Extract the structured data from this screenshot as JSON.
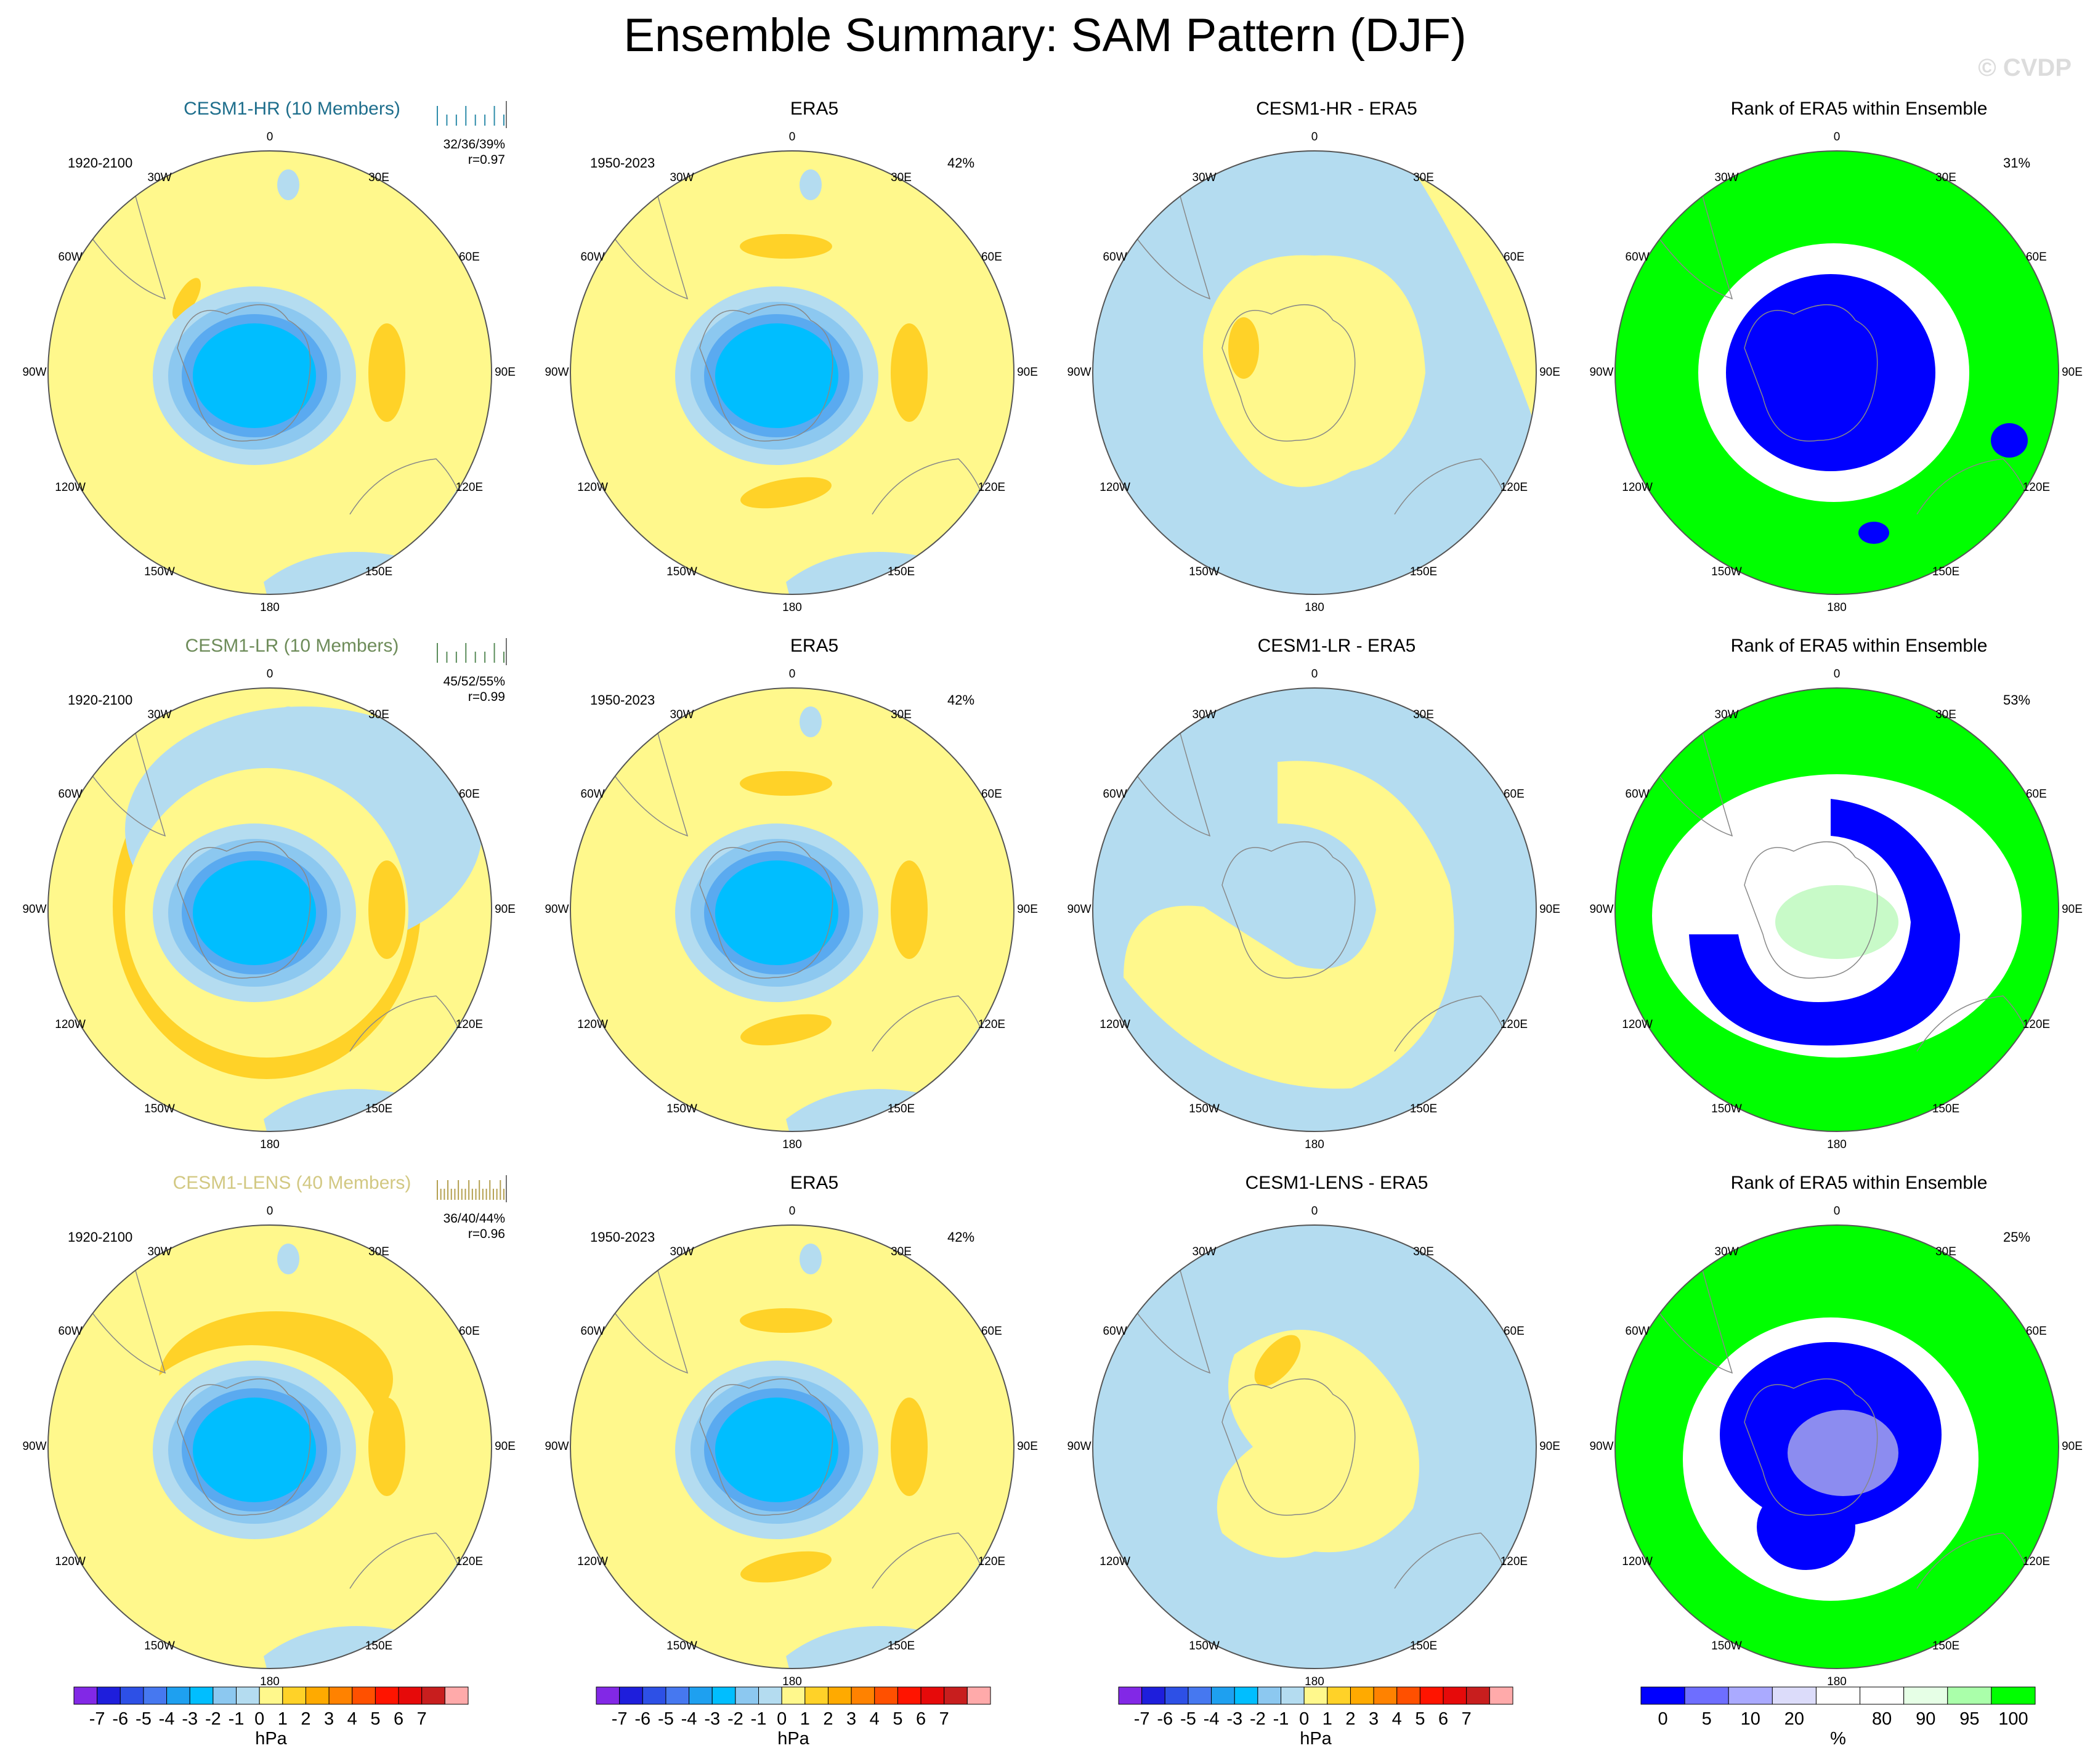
{
  "title": "Ensemble Summary: SAM Pattern (DJF)",
  "watermark": "© CVDP",
  "colors": {
    "yellow": "#FFF88C",
    "gold": "#FFD228",
    "lightblue": "#B4DCF0",
    "blue1": "#8CC8F0",
    "blue2": "#5AAAF0",
    "blue3": "#00BEFF",
    "rank_green": "#00FF00",
    "rank_blue": "#0000FF"
  },
  "lon_labels": [
    "0",
    "30E",
    "60E",
    "90E",
    "120E",
    "150E",
    "180",
    "150W",
    "120W",
    "90W",
    "60W",
    "30W"
  ],
  "rows": [
    {
      "model": {
        "title": "CESM1-HR (10 Members)",
        "title_color": "#1E6E8C",
        "years": "1920-2100",
        "stats1": "32/36/39%",
        "stats2": "r=0.97",
        "tick_color": "#2E8CAA"
      },
      "obs": {
        "title": "ERA5",
        "years": "1950-2023",
        "pct": "42%"
      },
      "diff": {
        "title": "CESM1-HR - ERA5"
      },
      "rank": {
        "title": "Rank of ERA5 within Ensemble",
        "pct": "31%"
      }
    },
    {
      "model": {
        "title": "CESM1-LR (10 Members)",
        "title_color": "#6E8C5A",
        "years": "1920-2100",
        "stats1": "45/52/55%",
        "stats2": "r=0.99",
        "tick_color": "#5A8C5A"
      },
      "obs": {
        "title": "ERA5",
        "years": "1950-2023",
        "pct": "42%"
      },
      "diff": {
        "title": "CESM1-LR - ERA5"
      },
      "rank": {
        "title": "Rank of ERA5 within Ensemble",
        "pct": "53%"
      }
    },
    {
      "model": {
        "title": "CESM1-LENS (40 Members)",
        "title_color": "#D2C882",
        "years": "1920-2100",
        "stats1": "36/40/44%",
        "stats2": "r=0.96",
        "tick_color": "#B4A050"
      },
      "obs": {
        "title": "ERA5",
        "years": "1950-2023",
        "pct": "42%"
      },
      "diff": {
        "title": "CESM1-LENS - ERA5"
      },
      "rank": {
        "title": "Rank of ERA5 within Ensemble",
        "pct": "25%"
      }
    }
  ],
  "colorbar_hpa": {
    "colors": [
      "#8228E6",
      "#1E1EDC",
      "#2D50E6",
      "#4678F0",
      "#1EA0F0",
      "#00BEFF",
      "#8CC8F0",
      "#B4DCF0",
      "#FFF88C",
      "#FFD228",
      "#FFAA00",
      "#FF8200",
      "#FF5000",
      "#FF1400",
      "#E60A0A",
      "#C81E1E",
      "#FFAAAA"
    ],
    "labels": [
      "-7",
      "-6",
      "-5",
      "-4",
      "-3",
      "-2",
      "-1",
      "0",
      "1",
      "2",
      "3",
      "4",
      "5",
      "6",
      "7"
    ],
    "unit": "hPa"
  },
  "colorbar_rank": {
    "colors": [
      "#0000FF",
      "#6E6EFF",
      "#AAAAFF",
      "#DCDCFA",
      "#FFFFFF",
      "#FFFFFF",
      "#E6FFE6",
      "#AAFFAA",
      "#00FF00"
    ],
    "labels": [
      "0",
      "5",
      "10",
      "20",
      "80",
      "90",
      "95",
      "100"
    ],
    "unit": "%"
  }
}
